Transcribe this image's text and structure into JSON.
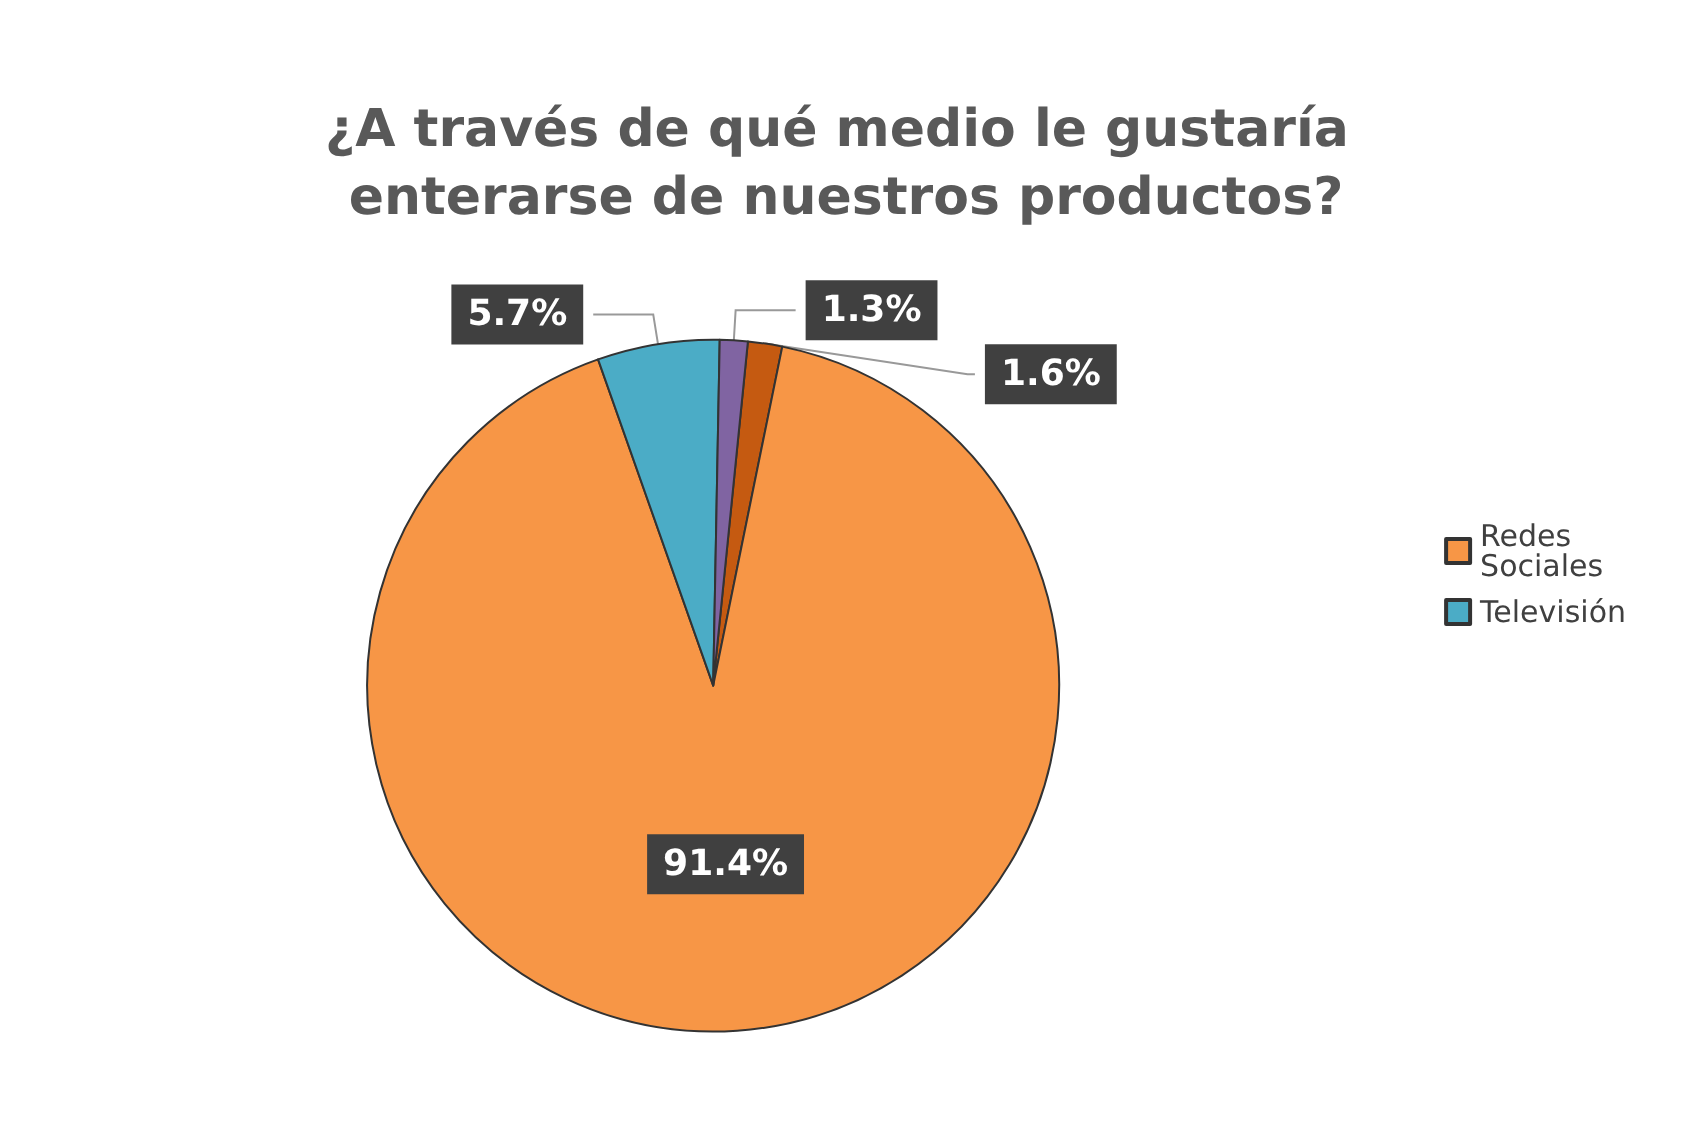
{
  "chart_data": {
    "type": "pie",
    "title": "¿A través de qué medio le gustaría enterarse de nuestros productos?",
    "categories": [
      "Redes Sociales",
      "Televisión",
      null,
      null
    ],
    "values": [
      91.4,
      5.7,
      1.3,
      1.6
    ],
    "value_labels": [
      "91.4%",
      "5.7%",
      "1.3%",
      "1.6%"
    ],
    "colors": [
      "#f79646",
      "#4bacc6",
      "#8064a2",
      "#c55a11"
    ],
    "legend": "right"
  }
}
